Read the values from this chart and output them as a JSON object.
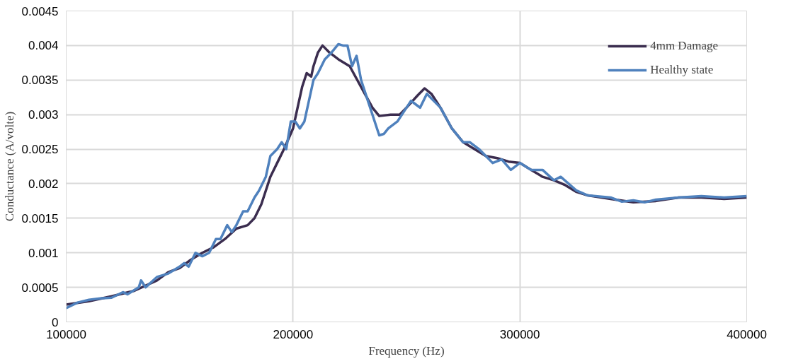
{
  "chart_data": {
    "type": "line",
    "xlabel": "Frequency (Hz)",
    "ylabel": "Conductance (A/volte)",
    "xlim": [
      100000,
      400000
    ],
    "xticks": [
      100000,
      200000,
      300000,
      400000
    ],
    "ylim": [
      0,
      0.0045
    ],
    "yticks": [
      0,
      0.0005,
      0.001,
      0.0015,
      0.002,
      0.0025,
      0.003,
      0.0035,
      0.004,
      0.0045
    ],
    "grid": true,
    "legend": "top right",
    "marker": "none",
    "line_style": "solid",
    "series": [
      {
        "name": "4mm Damage",
        "color": "#3b2d4f",
        "x": [
          100000,
          110000,
          120000,
          130000,
          140000,
          145000,
          150000,
          155000,
          160000,
          165000,
          170000,
          175000,
          180000,
          183000,
          186000,
          188000,
          190000,
          193000,
          196000,
          200000,
          202000,
          204000,
          206000,
          208000,
          209000,
          211000,
          213000,
          216000,
          220000,
          225000,
          230000,
          235000,
          238000,
          243000,
          247000,
          250000,
          255000,
          258000,
          261000,
          265000,
          270000,
          275000,
          280000,
          285000,
          290000,
          295000,
          300000,
          305000,
          310000,
          315000,
          320000,
          325000,
          330000,
          340000,
          350000,
          360000,
          370000,
          380000,
          390000,
          400000
        ],
        "values": [
          0.00025,
          0.0003,
          0.00037,
          0.00045,
          0.0006,
          0.00072,
          0.00078,
          0.0009,
          0.001,
          0.00108,
          0.0012,
          0.00135,
          0.0014,
          0.0015,
          0.0017,
          0.0019,
          0.0021,
          0.0023,
          0.0025,
          0.0028,
          0.0031,
          0.0034,
          0.0036,
          0.00355,
          0.0037,
          0.0039,
          0.004,
          0.0039,
          0.0038,
          0.0037,
          0.0034,
          0.0031,
          0.00298,
          0.003,
          0.003,
          0.0031,
          0.00328,
          0.00338,
          0.0033,
          0.0031,
          0.0028,
          0.0026,
          0.0025,
          0.0024,
          0.00237,
          0.00232,
          0.0023,
          0.0022,
          0.0021,
          0.00205,
          0.00198,
          0.00188,
          0.00183,
          0.00178,
          0.00173,
          0.00175,
          0.0018,
          0.0018,
          0.00178,
          0.0018
        ]
      },
      {
        "name": "Healthy state",
        "color": "#4f81bd",
        "x": [
          100000,
          105000,
          110000,
          115000,
          120000,
          125000,
          127000,
          132000,
          133000,
          135000,
          140000,
          145000,
          150000,
          152000,
          154000,
          157000,
          160000,
          163000,
          166000,
          168000,
          171000,
          173000,
          175000,
          178000,
          180000,
          183000,
          185000,
          188000,
          190000,
          193000,
          195000,
          197000,
          199000,
          201000,
          203000,
          205000,
          207000,
          209000,
          211000,
          214000,
          217000,
          220000,
          222000,
          224000,
          226000,
          228000,
          230000,
          233000,
          236000,
          238000,
          240000,
          242000,
          246000,
          250000,
          252000,
          254000,
          256000,
          259000,
          262000,
          265000,
          270000,
          275000,
          278000,
          282000,
          285000,
          288000,
          292000,
          296000,
          300000,
          305000,
          310000,
          315000,
          318000,
          325000,
          330000,
          340000,
          345000,
          350000,
          355000,
          360000,
          370000,
          380000,
          390000,
          400000
        ],
        "values": [
          0.0002,
          0.00028,
          0.00032,
          0.00034,
          0.00035,
          0.00043,
          0.0004,
          0.0005,
          0.0006,
          0.0005,
          0.00065,
          0.0007,
          0.0008,
          0.00085,
          0.0008,
          0.001,
          0.00095,
          0.001,
          0.0012,
          0.0012,
          0.0014,
          0.0013,
          0.0014,
          0.0016,
          0.0016,
          0.0018,
          0.0019,
          0.0021,
          0.0024,
          0.0025,
          0.0026,
          0.0025,
          0.0029,
          0.0029,
          0.0028,
          0.0029,
          0.0032,
          0.0035,
          0.0036,
          0.0038,
          0.0039,
          0.00402,
          0.004,
          0.004,
          0.0037,
          0.00385,
          0.0035,
          0.0032,
          0.0029,
          0.0027,
          0.00272,
          0.0028,
          0.0029,
          0.0031,
          0.0032,
          0.00315,
          0.0031,
          0.0033,
          0.0032,
          0.0031,
          0.0028,
          0.0026,
          0.0026,
          0.0025,
          0.0024,
          0.0023,
          0.00235,
          0.0022,
          0.0023,
          0.0022,
          0.0022,
          0.00205,
          0.0021,
          0.0019,
          0.00183,
          0.0018,
          0.00174,
          0.00176,
          0.00173,
          0.00177,
          0.0018,
          0.00182,
          0.0018,
          0.00182
        ]
      }
    ]
  }
}
